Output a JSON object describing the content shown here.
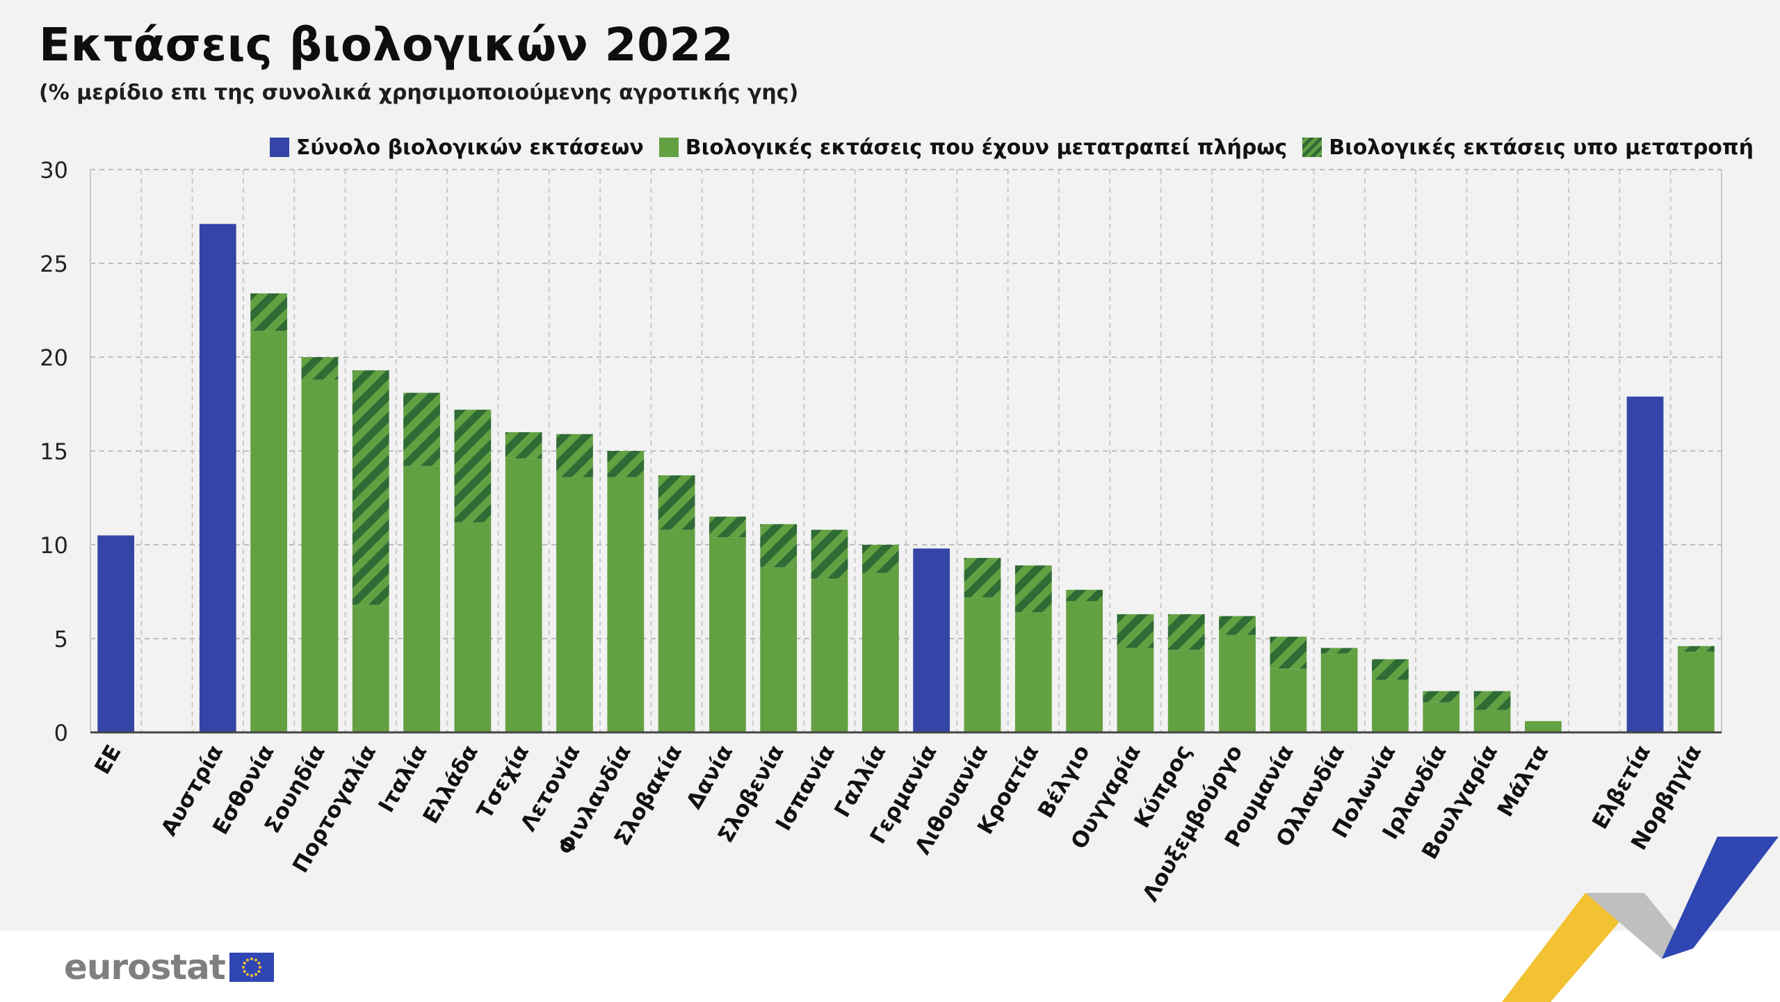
{
  "title": "Εκτάσεις βιολογικών 2022",
  "subtitle": "(% μερίδιο επι της συνολικά χρησιμοποιούμενης αγροτικής γης)",
  "brand": {
    "logo_text": "eurostat"
  },
  "colors": {
    "total": "#3445a7",
    "converted": "#63a042",
    "hatch_dark": "#2f6b34",
    "panel_bg": "#f2f2f2",
    "grid": "#bdbdbd",
    "deco_yellow": "#f2c233",
    "deco_blue": "#2f46b3",
    "deco_grey": "#bfbfbf"
  },
  "legend": [
    {
      "label": "Σύνολο βιολογικών εκτάσεων",
      "kind": "total"
    },
    {
      "label": "Βιολογικές εκτάσεις που έχουν μετατραπεί πλήρως",
      "kind": "converted"
    },
    {
      "label": "Βιολογικές εκτάσεις υπο μετατροπή",
      "kind": "conversion"
    }
  ],
  "chart_data": {
    "type": "bar",
    "stacked": true,
    "title": "Εκτάσεις βιολογικών 2022",
    "subtitle": "(% μερίδιο επι της συνολικά χρησιμοποιούμενης αγροτικής γης)",
    "ylim": [
      0,
      30
    ],
    "yticks": [
      0,
      5,
      10,
      15,
      20,
      25,
      30
    ],
    "grid": true,
    "legend_position": "top-right",
    "categories": [
      "ΕΕ",
      "Αυστρία",
      "Εσθονία",
      "Σουηδία",
      "Πορτογαλία",
      "Ιταλία",
      "Ελλάδα",
      "Τσεχία",
      "Λετονία",
      "Φινλανδία",
      "Σλοβακία",
      "Δανία",
      "Σλοβενία",
      "Ισπανία",
      "Γαλλία",
      "Γερμανία",
      "Λιθουανία",
      "Κροατία",
      "Βέλγιο",
      "Ουγγαρία",
      "Κύπρος",
      "Λουξεμβούργο",
      "Ρουμανία",
      "Ολλανδία",
      "Πολωνία",
      "Ιρλανδία",
      "Βουλγαρία",
      "Μάλτα",
      "Ελβετία",
      "Νορβηγία"
    ],
    "gap_after": [
      "ΕΕ",
      "Μάλτα"
    ],
    "series": [
      {
        "name": "Σύνολο βιολογικών εκτάσεων",
        "values": [
          10.5,
          27.1,
          null,
          null,
          null,
          null,
          null,
          null,
          null,
          null,
          null,
          null,
          null,
          null,
          null,
          9.8,
          null,
          null,
          null,
          null,
          null,
          null,
          null,
          null,
          null,
          null,
          null,
          null,
          17.9,
          null
        ]
      },
      {
        "name": "Βιολογικές εκτάσεις που έχουν μετατραπεί πλήρως",
        "values": [
          null,
          null,
          21.4,
          18.8,
          6.8,
          14.2,
          11.2,
          14.6,
          13.6,
          13.6,
          10.8,
          10.4,
          8.8,
          8.2,
          8.5,
          null,
          7.2,
          6.4,
          7.0,
          4.5,
          4.4,
          5.2,
          3.4,
          4.2,
          2.8,
          1.6,
          1.2,
          0.6,
          null,
          4.3
        ]
      },
      {
        "name": "Βιολογικές εκτάσεις υπο μετατροπή",
        "values": [
          null,
          null,
          2.0,
          1.2,
          12.5,
          3.9,
          6.0,
          1.4,
          2.3,
          1.4,
          2.9,
          1.1,
          2.3,
          2.6,
          1.5,
          null,
          2.1,
          2.5,
          0.6,
          1.8,
          1.9,
          1.0,
          1.7,
          0.3,
          1.1,
          0.6,
          1.0,
          null,
          null,
          0.3
        ]
      }
    ]
  }
}
